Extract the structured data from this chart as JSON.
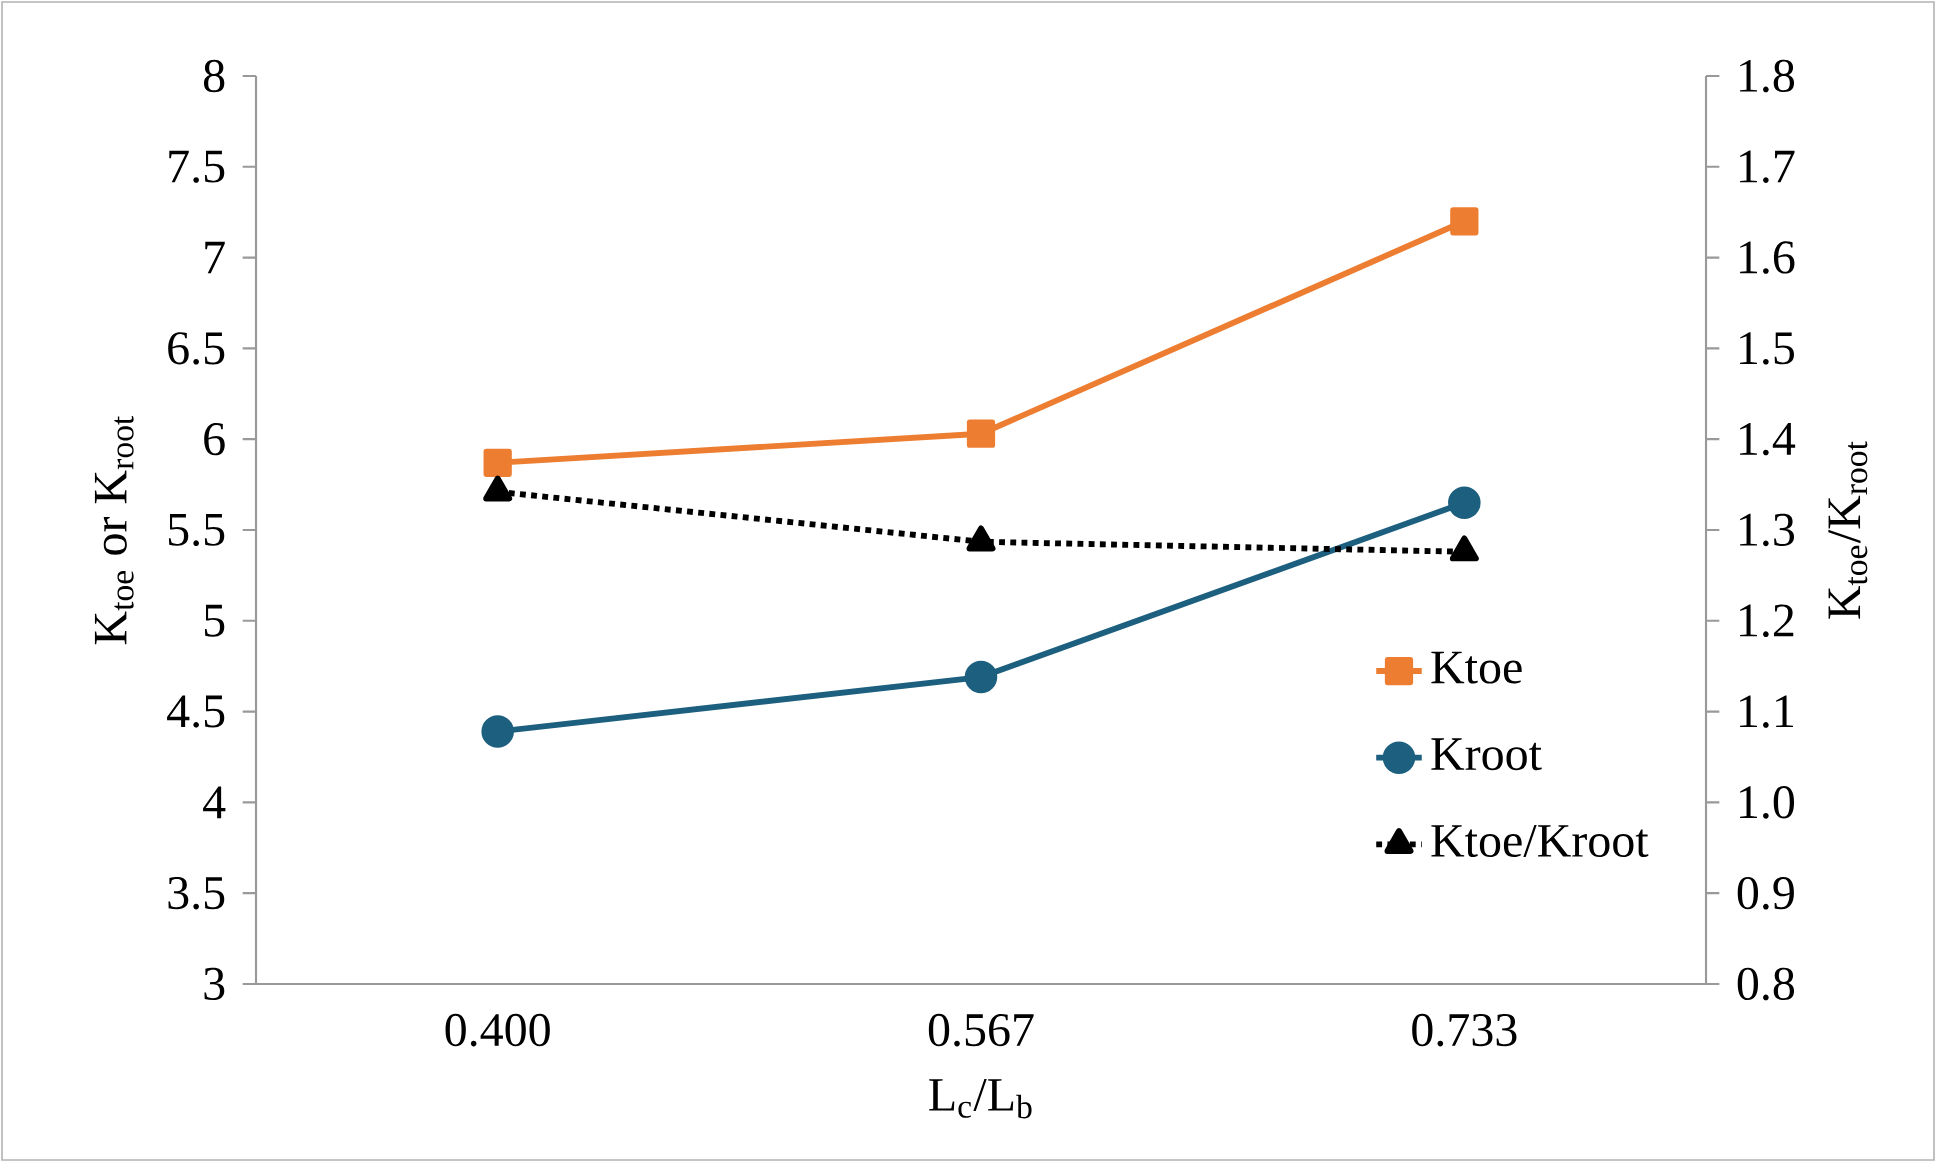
{
  "chart_data": {
    "type": "line",
    "xlabel": "L$_{c}$/L$_{b}$",
    "ylabel": "K$_{toe}$ or K$_{root}$",
    "y2label": "K$_{toe}$/K$_{root}$",
    "categories": [
      "0.400",
      "0.567",
      "0.733"
    ],
    "series": [
      {
        "name": "Ktoe",
        "color": "#ed7d31",
        "values": [
          5.87,
          6.03,
          7.2
        ],
        "marker": "square",
        "line_style": "solid"
      },
      {
        "name": "Kroot",
        "color": "#1d5f7e",
        "values": [
          4.39,
          4.69,
          5.65
        ],
        "marker": "circle",
        "line_style": "solid"
      },
      {
        "name": "Ktoe/Kroot",
        "color": "#000000",
        "values": [
          1.342,
          1.287,
          1.276
        ],
        "marker": "triangle",
        "line_style": "dotted",
        "axis": "y2"
      }
    ],
    "ylim": [
      3,
      8
    ],
    "yticks": [
      3,
      3.5,
      4,
      4.5,
      5,
      5.5,
      6,
      6.5,
      7,
      7.5,
      8
    ],
    "y2lim": [
      0.8,
      1.8
    ],
    "y2ticks": [
      0.8,
      0.9,
      {
        "value": 1,
        "label": "1.0"
      },
      1.1,
      1.2,
      1.3,
      1.4,
      1.5,
      1.6,
      1.7,
      1.8
    ],
    "grid": false,
    "legend": "right"
  }
}
